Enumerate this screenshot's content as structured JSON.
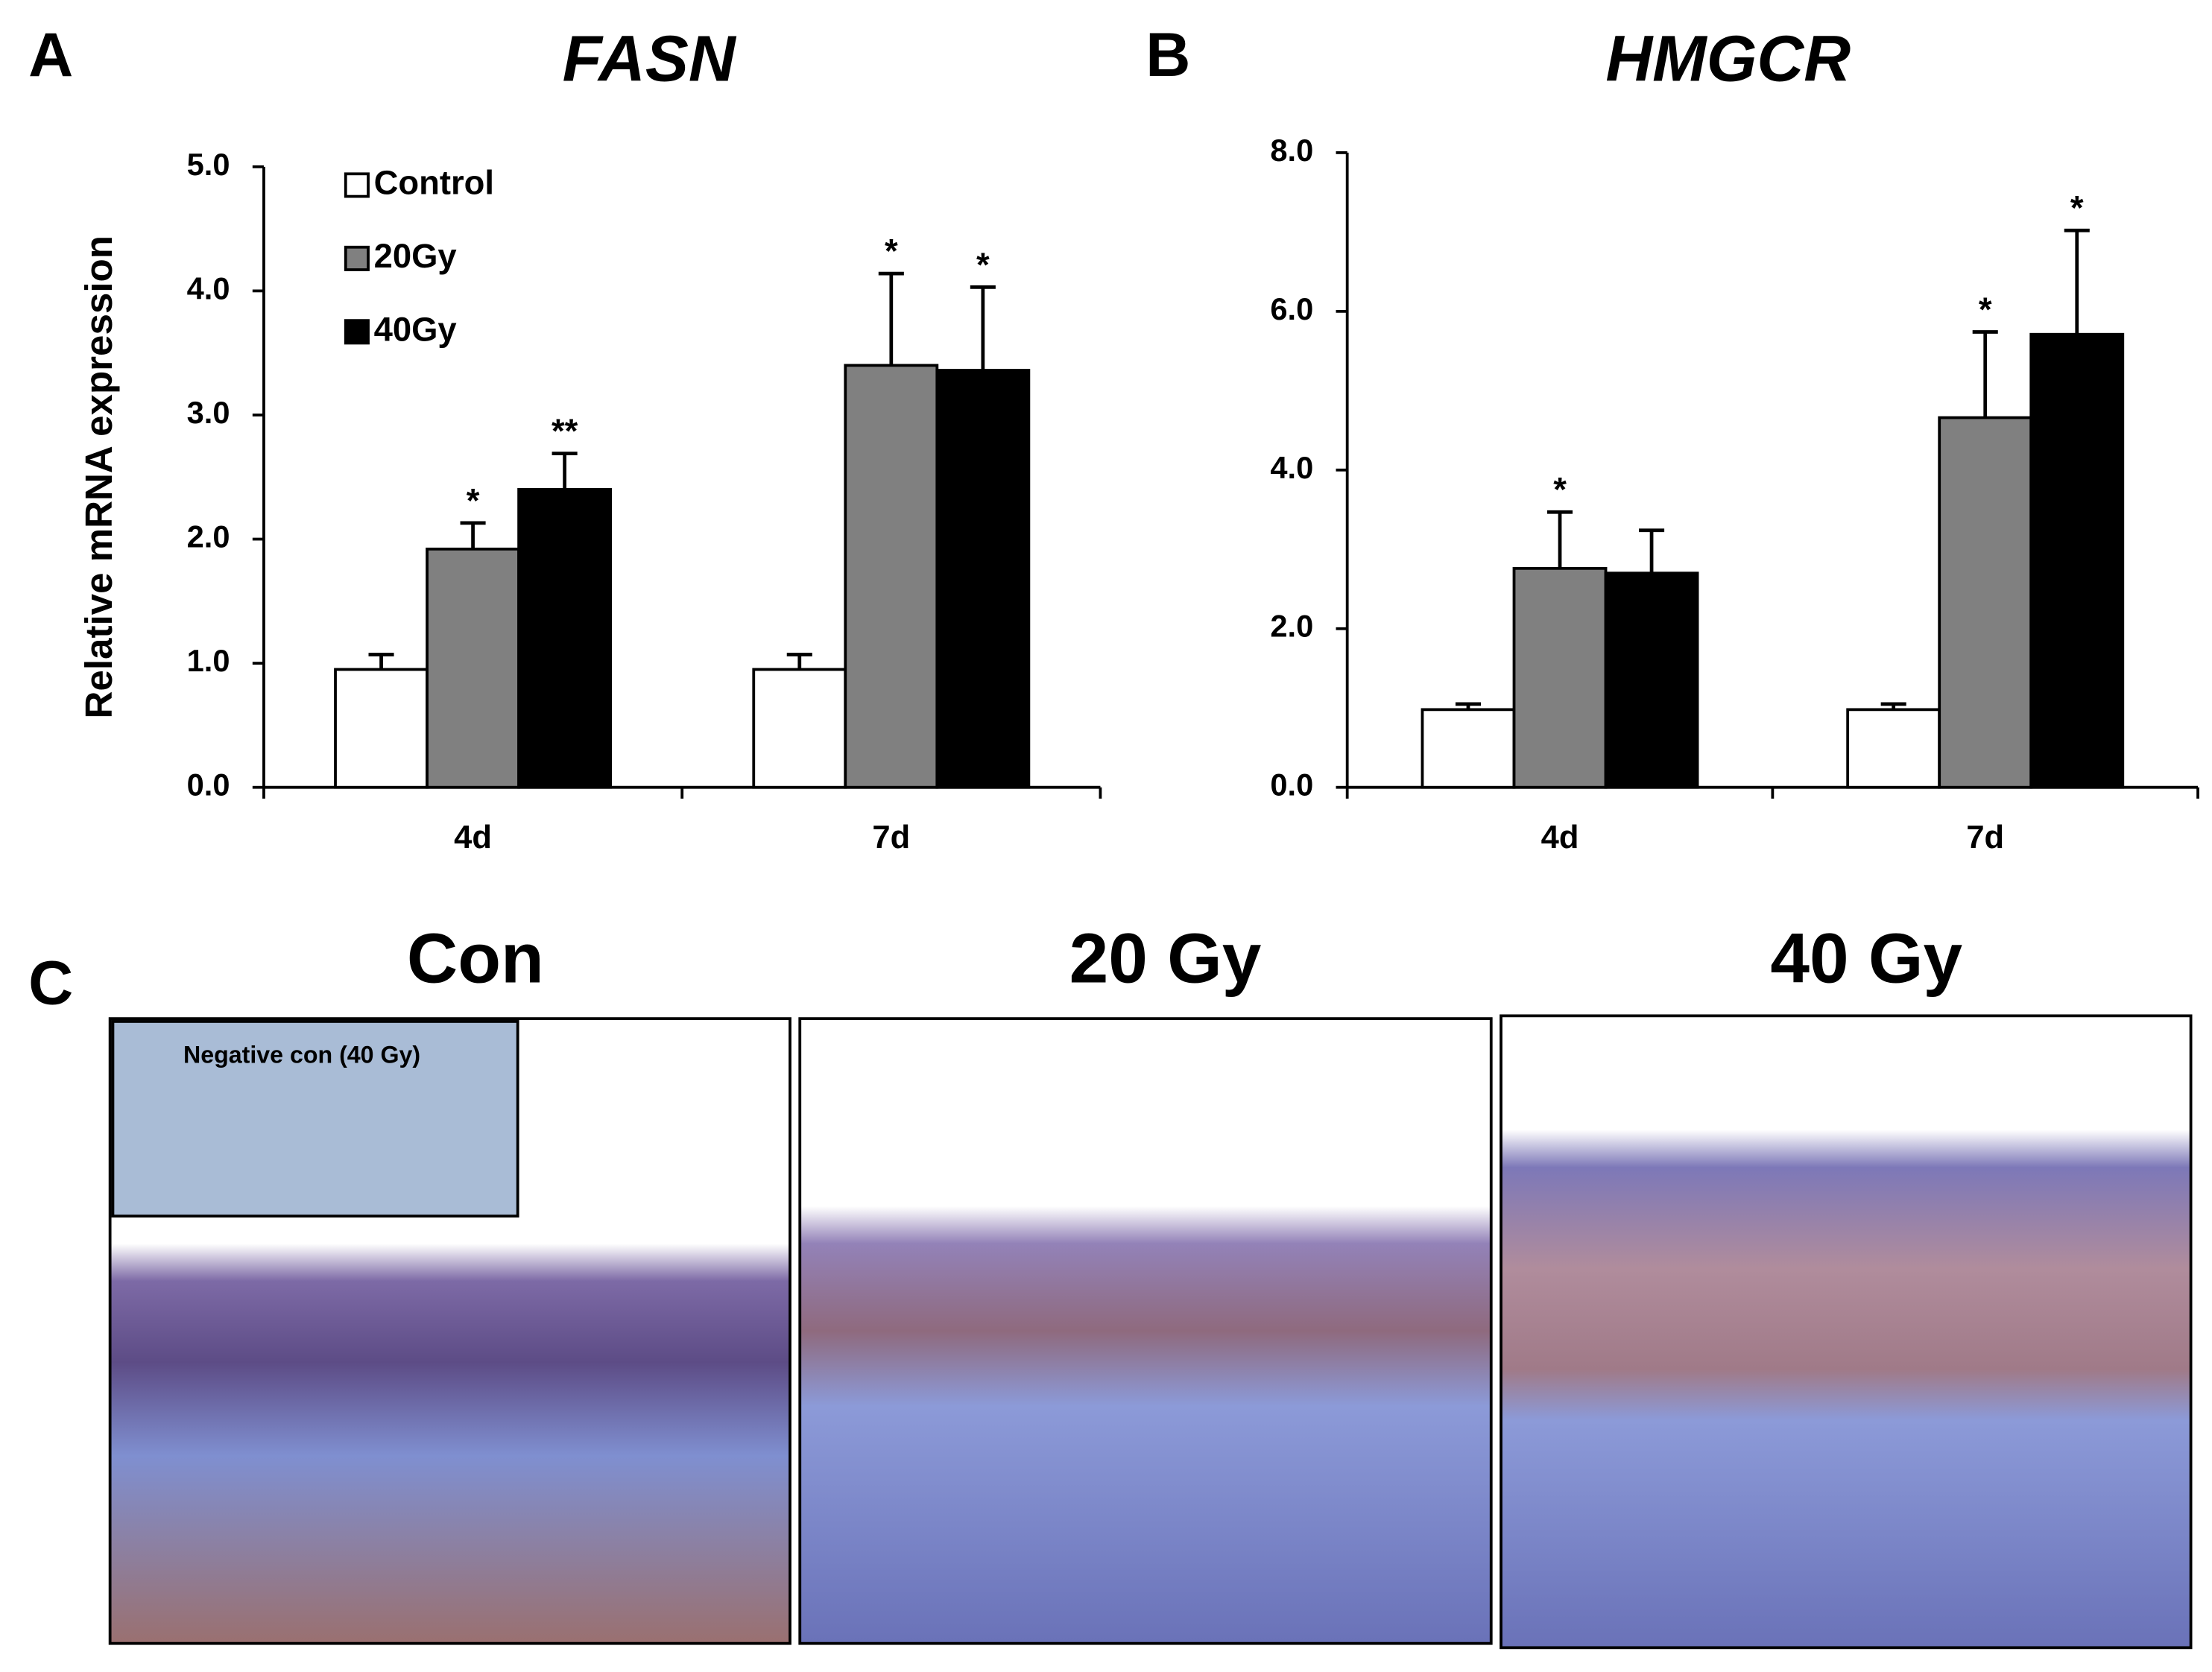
{
  "chart_data": [
    {
      "type": "bar",
      "panel_label": "A",
      "title": "FASN",
      "ylabel": "Relative mRNA expression",
      "categories": [
        "4d",
        "7d"
      ],
      "series": [
        {
          "name": "Control",
          "color": "#ffffff",
          "values": [
            0.95,
            0.95
          ],
          "errors": [
            0.12,
            0.12
          ],
          "significance": [
            null,
            null
          ]
        },
        {
          "name": "20Gy",
          "color": "#808080",
          "values": [
            1.92,
            3.4
          ],
          "errors": [
            0.21,
            0.74
          ],
          "significance": [
            "*",
            "*"
          ]
        },
        {
          "name": "40Gy",
          "color": "#000000",
          "values": [
            2.4,
            3.36
          ],
          "errors": [
            0.29,
            0.67
          ],
          "significance": [
            "**",
            "*"
          ]
        }
      ],
      "ylim": [
        0,
        5
      ],
      "yticks": [
        {
          "value": 0,
          "label": "0.0"
        },
        {
          "value": 1,
          "label": "1.0"
        },
        {
          "value": 2,
          "label": "2.0"
        },
        {
          "value": 3,
          "label": "3.0"
        },
        {
          "value": 4,
          "label": "4.0"
        },
        {
          "value": 5,
          "label": "5.0"
        }
      ],
      "legend": "upper left"
    },
    {
      "type": "bar",
      "panel_label": "B",
      "title": "HMGCR",
      "categories": [
        "4d",
        "7d"
      ],
      "series": [
        {
          "color": "#ffffff",
          "values": [
            0.98,
            0.98
          ],
          "errors": [
            0.07,
            0.07
          ],
          "significance": [
            null,
            null
          ]
        },
        {
          "color": "#808080",
          "values": [
            2.76,
            4.66
          ],
          "errors": [
            0.71,
            1.08
          ],
          "significance": [
            "*",
            "*"
          ]
        },
        {
          "color": "#000000",
          "values": [
            2.7,
            5.71
          ],
          "errors": [
            0.54,
            1.31
          ],
          "significance": [
            null,
            "*"
          ]
        }
      ],
      "ylim": [
        0,
        8
      ],
      "yticks": [
        {
          "value": 0,
          "label": "0.0"
        },
        {
          "value": 2,
          "label": "2.0"
        },
        {
          "value": 4,
          "label": "4.0"
        },
        {
          "value": 6,
          "label": "6.0"
        },
        {
          "value": 8,
          "label": "8.0"
        }
      ]
    }
  ],
  "panel_c": {
    "label": "C",
    "titles": [
      "Con",
      "20 Gy",
      "40 Gy"
    ],
    "inset_label": "Negative con (40 Gy)"
  }
}
